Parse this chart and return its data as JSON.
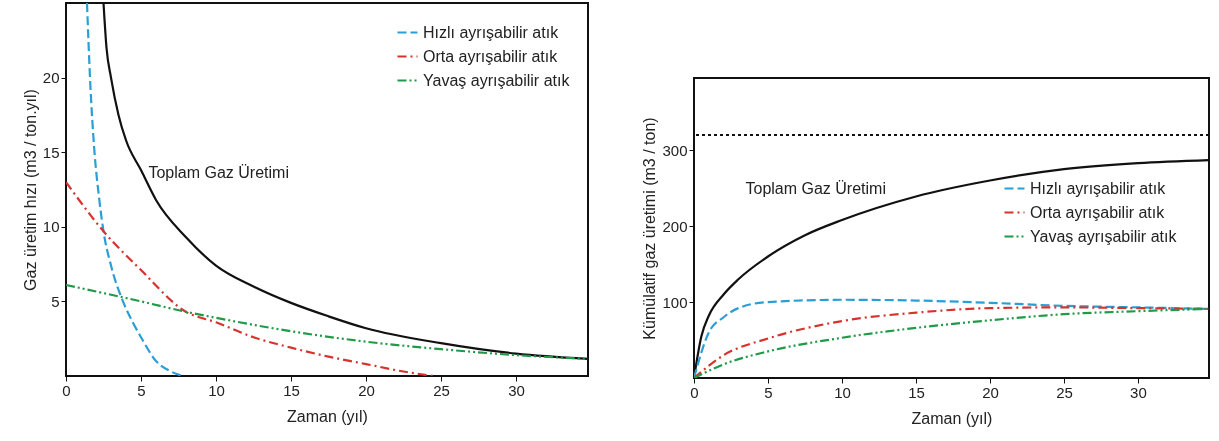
{
  "chart_data": [
    {
      "type": "line",
      "xlabel": "Zaman (yıl)",
      "ylabel": "Gaz üretim hızı (m3 / ton.yıl)",
      "xlim": [
        0,
        34.8
      ],
      "ylim": [
        0,
        25
      ],
      "xticks": [
        0,
        5,
        10,
        15,
        20,
        25,
        30
      ],
      "yticks": [
        5,
        10,
        15,
        20
      ],
      "grid": false,
      "legend": "top right",
      "annotations": [
        "Toplam Gaz Üretimi"
      ],
      "series": [
        {
          "color": "#111111",
          "line_style": "solid",
          "x": [
            2.5,
            2.7,
            3,
            3.5,
            4,
            5,
            6,
            8,
            10,
            12.5,
            15,
            17.5,
            20,
            25,
            30,
            34.8
          ],
          "values": [
            25,
            22,
            20,
            17.5,
            15.8,
            13.8,
            11.8,
            9.3,
            7.4,
            6,
            4.9,
            4,
            3.2,
            2.2,
            1.5,
            1.15
          ]
        },
        {
          "name": "Hızlı ayrışabilir atık",
          "color": "#2a9fd6",
          "line_style": "dashed",
          "x": [
            1.4,
            1.6,
            1.9,
            2.2,
            2.5,
            3,
            3.8,
            4.5,
            5,
            6,
            7,
            7.8
          ],
          "values": [
            25,
            20,
            15,
            12,
            9.7,
            7.4,
            5,
            3.5,
            2.6,
            1.0,
            0.3,
            0
          ]
        },
        {
          "name": "Orta ayrışabilir atık",
          "color": "#d6322e",
          "line_style": "dashdot",
          "x": [
            0,
            2.5,
            5,
            8,
            10,
            12.5,
            15,
            17.5,
            20,
            22.5,
            24.5
          ],
          "values": [
            13,
            9.7,
            7.1,
            4.3,
            3.6,
            2.6,
            1.9,
            1.3,
            0.8,
            0.3,
            0
          ]
        },
        {
          "name": "Yavaş ayrışabilir atık",
          "color": "#1f9a48",
          "line_style": "dashdotdot",
          "x": [
            0,
            5,
            8,
            10,
            15,
            20,
            25,
            30,
            34.8
          ],
          "values": [
            6.1,
            5.0,
            4.3,
            3.9,
            3.0,
            2.3,
            1.8,
            1.4,
            1.15
          ]
        }
      ]
    },
    {
      "type": "line",
      "xlabel": "Zaman (yıl)",
      "ylabel": "Kümülatif gaz üretimi (m3 / ton)",
      "xlim": [
        0,
        34.8
      ],
      "ylim": [
        0,
        395
      ],
      "xticks": [
        0,
        5,
        10,
        15,
        20,
        25,
        30
      ],
      "yticks": [
        100,
        200,
        300
      ],
      "grid": false,
      "legend": "right",
      "annotations": [
        "Toplam Gaz Üretimi"
      ],
      "ref_lines": [
        {
          "axis": "y",
          "value": 320,
          "color": "#111111",
          "line_style": "dotted"
        }
      ],
      "series": [
        {
          "color": "#111111",
          "line_style": "solid",
          "x": [
            0,
            0.5,
            1,
            2,
            3,
            5,
            7.5,
            10,
            15,
            20,
            25,
            30,
            34.8
          ],
          "values": [
            0,
            55,
            82,
            110,
            130,
            160,
            188,
            208,
            239,
            260,
            275,
            283,
            287
          ]
        },
        {
          "name": "Hızlı ayrışabilir atık",
          "color": "#2a9fd6",
          "line_style": "dashed",
          "x": [
            0,
            1,
            2,
            3,
            5,
            10,
            15,
            20,
            25,
            30,
            34.8
          ],
          "values": [
            0,
            60,
            80,
            92,
            100,
            103,
            102,
            99,
            95,
            93,
            91
          ]
        },
        {
          "name": "Orta ayrışabilir atık",
          "color": "#d6322e",
          "line_style": "dashdot",
          "x": [
            0,
            2,
            5,
            10,
            15,
            20,
            25,
            30,
            34.8
          ],
          "values": [
            0,
            30,
            52,
            75,
            86,
            92,
            93,
            92,
            91
          ]
        },
        {
          "name": "Yavaş ayrışabilir atık",
          "color": "#1f9a48",
          "line_style": "dashdotdot",
          "x": [
            0,
            2,
            5,
            10,
            15,
            20,
            25,
            30,
            34.8
          ],
          "values": [
            0,
            18,
            35,
            53,
            66,
            76,
            84,
            88,
            91
          ]
        }
      ]
    }
  ]
}
